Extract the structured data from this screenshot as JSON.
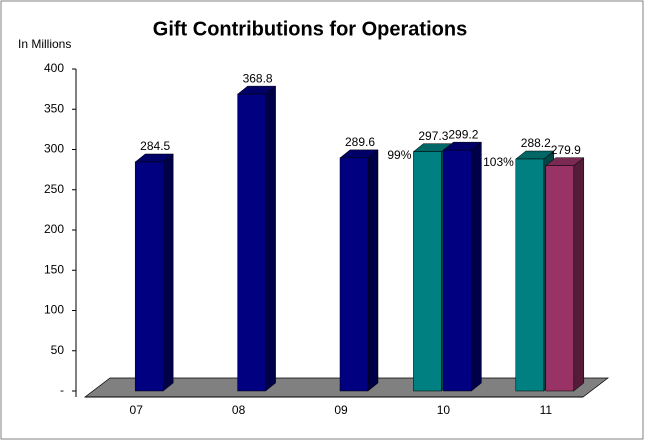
{
  "chart_data": {
    "type": "bar3d",
    "title": "Gift Contributions for Operations",
    "y_label": "In Millions",
    "categories": [
      "07",
      "08",
      "09",
      "10",
      "11"
    ],
    "series": [
      {
        "color": "#008080",
        "values": [
          null,
          null,
          null,
          297.3,
          288.2
        ]
      },
      {
        "color": "#000080",
        "values": [
          284.5,
          368.8,
          289.6,
          299.2,
          null
        ]
      },
      {
        "color": "#993366",
        "values": [
          null,
          null,
          null,
          null,
          279.9
        ]
      }
    ],
    "annotations": [
      {
        "category": 3,
        "text": "99%"
      },
      {
        "category": 4,
        "text": "103%"
      }
    ],
    "ylim": [
      0,
      400
    ],
    "yticks": [
      {
        "value": 0,
        "label": "-"
      },
      50,
      100,
      150,
      200,
      250,
      300,
      350,
      400
    ]
  }
}
